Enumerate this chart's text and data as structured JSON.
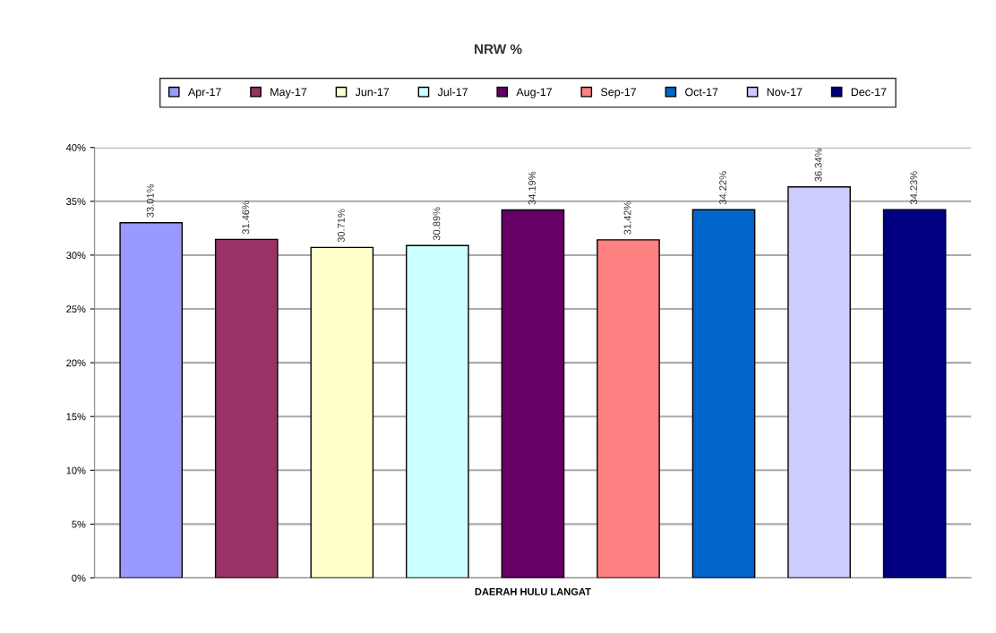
{
  "chart_data": {
    "type": "bar",
    "title": "NRW %",
    "categories": [
      "DAERAH HULU LANGAT"
    ],
    "series": [
      {
        "name": "Apr-17",
        "color": "#9999ff",
        "values": [
          33.01
        ],
        "value_labels": [
          "33.01%"
        ]
      },
      {
        "name": "May-17",
        "color": "#993366",
        "values": [
          31.46
        ],
        "value_labels": [
          "31.46%"
        ]
      },
      {
        "name": "Jun-17",
        "color": "#ffffcc",
        "values": [
          30.71
        ],
        "value_labels": [
          "30.71%"
        ]
      },
      {
        "name": "Jul-17",
        "color": "#ccffff",
        "values": [
          30.89
        ],
        "value_labels": [
          "30.89%"
        ]
      },
      {
        "name": "Aug-17",
        "color": "#660066",
        "values": [
          34.19
        ],
        "value_labels": [
          "34.19%"
        ]
      },
      {
        "name": "Sep-17",
        "color": "#ff8080",
        "values": [
          31.42
        ],
        "value_labels": [
          "31.42%"
        ]
      },
      {
        "name": "Oct-17",
        "color": "#0066cc",
        "values": [
          34.22
        ],
        "value_labels": [
          "34.22%"
        ]
      },
      {
        "name": "Nov-17",
        "color": "#ccccff",
        "values": [
          36.34
        ],
        "value_labels": [
          "36.34%"
        ]
      },
      {
        "name": "Dec-17",
        "color": "#000080",
        "values": [
          34.23
        ],
        "value_labels": [
          "34.23%"
        ]
      }
    ],
    "ylim": [
      0,
      40
    ],
    "yticks": [
      {
        "value": 0,
        "label": "0%"
      },
      {
        "value": 5,
        "label": "5%"
      },
      {
        "value": 10,
        "label": "10%"
      },
      {
        "value": 15,
        "label": "15%"
      },
      {
        "value": 20,
        "label": "20%"
      },
      {
        "value": 25,
        "label": "25%"
      },
      {
        "value": 30,
        "label": "30%"
      },
      {
        "value": 35,
        "label": "35%"
      },
      {
        "value": 40,
        "label": "40%"
      }
    ],
    "grid": "y",
    "legend": "top"
  }
}
